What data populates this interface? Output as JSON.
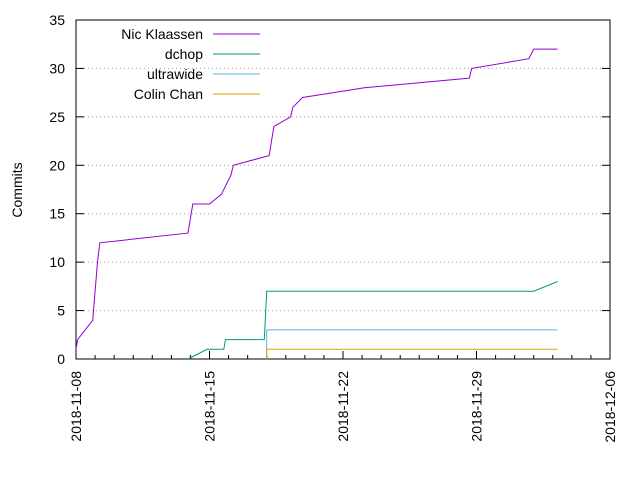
{
  "chart_data": {
    "type": "line",
    "title": "",
    "xlabel": "",
    "ylabel": "Commits",
    "x_axis": {
      "type": "date",
      "range": [
        "2018-11-08",
        "2018-12-06"
      ],
      "ticks": [
        "2018-11-08",
        "2018-11-15",
        "2018-11-22",
        "2018-11-29",
        "2018-12-06"
      ]
    },
    "y_axis": {
      "range": [
        0,
        35
      ],
      "ticks": [
        0,
        5,
        10,
        15,
        20,
        25,
        30,
        35
      ]
    },
    "grid": "horizontal dotted",
    "legend_position": "top-left",
    "series": [
      {
        "name": "Nic Klaassen",
        "color": "#9400d3",
        "points": [
          [
            "2018-11-08 00:00",
            1
          ],
          [
            "2018-11-08 02:00",
            2
          ],
          [
            "2018-11-08 21:00",
            4
          ],
          [
            "2018-11-09 03:00",
            10
          ],
          [
            "2018-11-09 06:00",
            12
          ],
          [
            "2018-11-13 21:00",
            13
          ],
          [
            "2018-11-14 03:00",
            16
          ],
          [
            "2018-11-15 00:00",
            16
          ],
          [
            "2018-11-15 15:00",
            17
          ],
          [
            "2018-11-16 03:00",
            19
          ],
          [
            "2018-11-16 06:00",
            20
          ],
          [
            "2018-11-18 03:00",
            21
          ],
          [
            "2018-11-18 09:00",
            24
          ],
          [
            "2018-11-19 06:00",
            25
          ],
          [
            "2018-11-19 09:00",
            26
          ],
          [
            "2018-11-19 21:00",
            27
          ],
          [
            "2018-11-23 03:00",
            28
          ],
          [
            "2018-11-28 15:00",
            29
          ],
          [
            "2018-11-28 18:00",
            30
          ],
          [
            "2018-12-01 18:00",
            31
          ],
          [
            "2018-12-02 00:00",
            32
          ],
          [
            "2018-12-03 06:00",
            32
          ]
        ]
      },
      {
        "name": "dchop",
        "color": "#009e73",
        "points": [
          [
            "2018-11-13 21:00",
            0
          ],
          [
            "2018-11-14 21:00",
            1
          ],
          [
            "2018-11-15 18:00",
            1
          ],
          [
            "2018-11-15 20:00",
            2
          ],
          [
            "2018-11-17 21:00",
            2
          ],
          [
            "2018-11-18 00:00",
            7
          ],
          [
            "2018-12-02 00:00",
            7
          ],
          [
            "2018-12-03 06:00",
            8
          ]
        ]
      },
      {
        "name": "ultrawide",
        "color": "#56b4e9",
        "points": [
          [
            "2018-11-18 00:00",
            0
          ],
          [
            "2018-11-18 00:00",
            3
          ],
          [
            "2018-12-03 06:00",
            3
          ]
        ]
      },
      {
        "name": "Colin Chan",
        "color": "#e69f00",
        "points": [
          [
            "2018-11-18 00:00",
            0
          ],
          [
            "2018-11-18 00:00",
            1
          ],
          [
            "2018-12-03 06:00",
            1
          ]
        ]
      }
    ]
  }
}
